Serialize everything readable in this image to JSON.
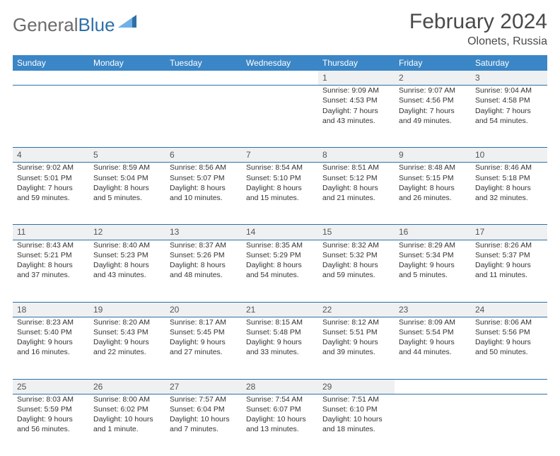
{
  "brand": {
    "part1": "General",
    "part2": "Blue"
  },
  "title": {
    "month": "February 2024",
    "location": "Olonets, Russia"
  },
  "colors": {
    "header_bg": "#3b86c6",
    "row_divider": "#2f6fa8",
    "daynum_bg": "#eef0f1",
    "text": "#333333",
    "brand_gray": "#6b6b6b",
    "brand_blue": "#2f6fa8"
  },
  "daysOfWeek": [
    "Sunday",
    "Monday",
    "Tuesday",
    "Wednesday",
    "Thursday",
    "Friday",
    "Saturday"
  ],
  "weeks": [
    [
      null,
      null,
      null,
      null,
      {
        "n": "1",
        "sunrise": "Sunrise: 9:09 AM",
        "sunset": "Sunset: 4:53 PM",
        "day1": "Daylight: 7 hours",
        "day2": "and 43 minutes."
      },
      {
        "n": "2",
        "sunrise": "Sunrise: 9:07 AM",
        "sunset": "Sunset: 4:56 PM",
        "day1": "Daylight: 7 hours",
        "day2": "and 49 minutes."
      },
      {
        "n": "3",
        "sunrise": "Sunrise: 9:04 AM",
        "sunset": "Sunset: 4:58 PM",
        "day1": "Daylight: 7 hours",
        "day2": "and 54 minutes."
      }
    ],
    [
      {
        "n": "4",
        "sunrise": "Sunrise: 9:02 AM",
        "sunset": "Sunset: 5:01 PM",
        "day1": "Daylight: 7 hours",
        "day2": "and 59 minutes."
      },
      {
        "n": "5",
        "sunrise": "Sunrise: 8:59 AM",
        "sunset": "Sunset: 5:04 PM",
        "day1": "Daylight: 8 hours",
        "day2": "and 5 minutes."
      },
      {
        "n": "6",
        "sunrise": "Sunrise: 8:56 AM",
        "sunset": "Sunset: 5:07 PM",
        "day1": "Daylight: 8 hours",
        "day2": "and 10 minutes."
      },
      {
        "n": "7",
        "sunrise": "Sunrise: 8:54 AM",
        "sunset": "Sunset: 5:10 PM",
        "day1": "Daylight: 8 hours",
        "day2": "and 15 minutes."
      },
      {
        "n": "8",
        "sunrise": "Sunrise: 8:51 AM",
        "sunset": "Sunset: 5:12 PM",
        "day1": "Daylight: 8 hours",
        "day2": "and 21 minutes."
      },
      {
        "n": "9",
        "sunrise": "Sunrise: 8:48 AM",
        "sunset": "Sunset: 5:15 PM",
        "day1": "Daylight: 8 hours",
        "day2": "and 26 minutes."
      },
      {
        "n": "10",
        "sunrise": "Sunrise: 8:46 AM",
        "sunset": "Sunset: 5:18 PM",
        "day1": "Daylight: 8 hours",
        "day2": "and 32 minutes."
      }
    ],
    [
      {
        "n": "11",
        "sunrise": "Sunrise: 8:43 AM",
        "sunset": "Sunset: 5:21 PM",
        "day1": "Daylight: 8 hours",
        "day2": "and 37 minutes."
      },
      {
        "n": "12",
        "sunrise": "Sunrise: 8:40 AM",
        "sunset": "Sunset: 5:23 PM",
        "day1": "Daylight: 8 hours",
        "day2": "and 43 minutes."
      },
      {
        "n": "13",
        "sunrise": "Sunrise: 8:37 AM",
        "sunset": "Sunset: 5:26 PM",
        "day1": "Daylight: 8 hours",
        "day2": "and 48 minutes."
      },
      {
        "n": "14",
        "sunrise": "Sunrise: 8:35 AM",
        "sunset": "Sunset: 5:29 PM",
        "day1": "Daylight: 8 hours",
        "day2": "and 54 minutes."
      },
      {
        "n": "15",
        "sunrise": "Sunrise: 8:32 AM",
        "sunset": "Sunset: 5:32 PM",
        "day1": "Daylight: 8 hours",
        "day2": "and 59 minutes."
      },
      {
        "n": "16",
        "sunrise": "Sunrise: 8:29 AM",
        "sunset": "Sunset: 5:34 PM",
        "day1": "Daylight: 9 hours",
        "day2": "and 5 minutes."
      },
      {
        "n": "17",
        "sunrise": "Sunrise: 8:26 AM",
        "sunset": "Sunset: 5:37 PM",
        "day1": "Daylight: 9 hours",
        "day2": "and 11 minutes."
      }
    ],
    [
      {
        "n": "18",
        "sunrise": "Sunrise: 8:23 AM",
        "sunset": "Sunset: 5:40 PM",
        "day1": "Daylight: 9 hours",
        "day2": "and 16 minutes."
      },
      {
        "n": "19",
        "sunrise": "Sunrise: 8:20 AM",
        "sunset": "Sunset: 5:43 PM",
        "day1": "Daylight: 9 hours",
        "day2": "and 22 minutes."
      },
      {
        "n": "20",
        "sunrise": "Sunrise: 8:17 AM",
        "sunset": "Sunset: 5:45 PM",
        "day1": "Daylight: 9 hours",
        "day2": "and 27 minutes."
      },
      {
        "n": "21",
        "sunrise": "Sunrise: 8:15 AM",
        "sunset": "Sunset: 5:48 PM",
        "day1": "Daylight: 9 hours",
        "day2": "and 33 minutes."
      },
      {
        "n": "22",
        "sunrise": "Sunrise: 8:12 AM",
        "sunset": "Sunset: 5:51 PM",
        "day1": "Daylight: 9 hours",
        "day2": "and 39 minutes."
      },
      {
        "n": "23",
        "sunrise": "Sunrise: 8:09 AM",
        "sunset": "Sunset: 5:54 PM",
        "day1": "Daylight: 9 hours",
        "day2": "and 44 minutes."
      },
      {
        "n": "24",
        "sunrise": "Sunrise: 8:06 AM",
        "sunset": "Sunset: 5:56 PM",
        "day1": "Daylight: 9 hours",
        "day2": "and 50 minutes."
      }
    ],
    [
      {
        "n": "25",
        "sunrise": "Sunrise: 8:03 AM",
        "sunset": "Sunset: 5:59 PM",
        "day1": "Daylight: 9 hours",
        "day2": "and 56 minutes."
      },
      {
        "n": "26",
        "sunrise": "Sunrise: 8:00 AM",
        "sunset": "Sunset: 6:02 PM",
        "day1": "Daylight: 10 hours",
        "day2": "and 1 minute."
      },
      {
        "n": "27",
        "sunrise": "Sunrise: 7:57 AM",
        "sunset": "Sunset: 6:04 PM",
        "day1": "Daylight: 10 hours",
        "day2": "and 7 minutes."
      },
      {
        "n": "28",
        "sunrise": "Sunrise: 7:54 AM",
        "sunset": "Sunset: 6:07 PM",
        "day1": "Daylight: 10 hours",
        "day2": "and 13 minutes."
      },
      {
        "n": "29",
        "sunrise": "Sunrise: 7:51 AM",
        "sunset": "Sunset: 6:10 PM",
        "day1": "Daylight: 10 hours",
        "day2": "and 18 minutes."
      },
      null,
      null
    ]
  ]
}
